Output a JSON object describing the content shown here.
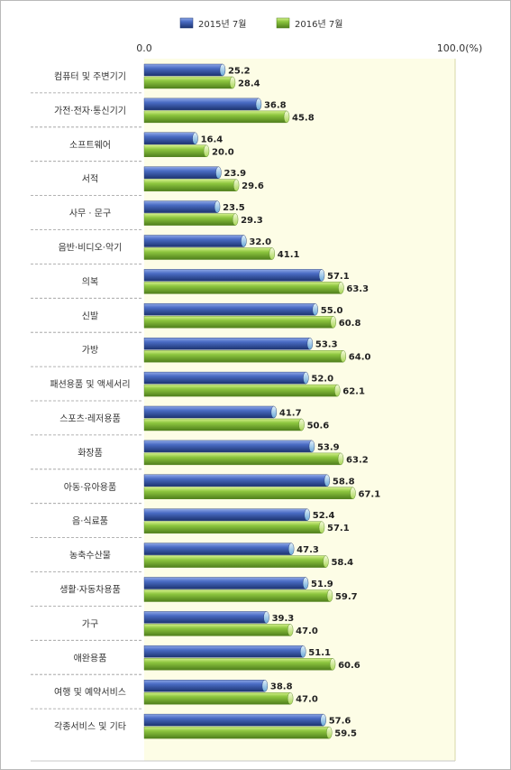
{
  "chart_data": {
    "type": "bar",
    "orientation": "horizontal",
    "xlim": [
      0,
      100
    ],
    "axis_min_label": "0.0",
    "axis_max_label": "100.0(%)",
    "legend_position": "top",
    "grid": false,
    "categories": [
      "컴퓨터 및 주변기기",
      "가전·전자·통신기기",
      "소프트웨어",
      "서적",
      "사무 · 문구",
      "음반·비디오·악기",
      "의복",
      "신발",
      "가방",
      "패션용품 및 액세서리",
      "스포츠·레저용품",
      "화장품",
      "아동·유아용품",
      "음·식료품",
      "농축수산물",
      "생활·자동차용품",
      "가구",
      "애완용품",
      "여행 및 예약서비스",
      "각종서비스 및 기타"
    ],
    "series": [
      {
        "name": "2015년 7월",
        "color": "#2e4f9e",
        "values": [
          25.2,
          36.8,
          16.4,
          23.9,
          23.5,
          32.0,
          57.1,
          55.0,
          53.3,
          52.0,
          41.7,
          53.9,
          58.8,
          52.4,
          47.3,
          51.9,
          39.3,
          51.1,
          38.8,
          57.6
        ],
        "labels": [
          "25.2",
          "36.8",
          "16.4",
          "23.9",
          "23.5",
          "32.0",
          "57.1",
          "55.0",
          "53.3",
          "52.0",
          "41.7",
          "53.9",
          "58.8",
          "52.4",
          "47.3",
          "51.9",
          "39.3",
          "51.1",
          "38.8",
          "57.6"
        ]
      },
      {
        "name": "2016년 7월",
        "color": "#7ab733",
        "values": [
          28.4,
          45.8,
          20.0,
          29.6,
          29.3,
          41.1,
          63.3,
          60.8,
          64.0,
          62.1,
          50.6,
          63.2,
          67.1,
          57.1,
          58.4,
          59.7,
          47.0,
          60.6,
          47.0,
          59.5
        ],
        "labels": [
          "28.4",
          "45.8",
          "20.0",
          "29.6",
          "29.3",
          "41.1",
          "63.3",
          "60.8",
          "64.0",
          "62.1",
          "50.6",
          "63.2",
          "67.1",
          "57.1",
          "58.4",
          "59.7",
          "47.0",
          "60.6",
          "47.0",
          "59.5"
        ]
      }
    ]
  }
}
